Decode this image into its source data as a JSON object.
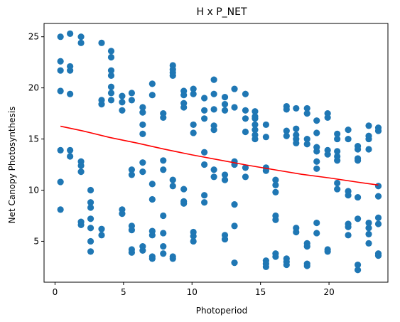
{
  "chart_data": {
    "type": "scatter",
    "title": "H x P_NET",
    "xlabel": "Photoperiod",
    "ylabel": "Net Canopy Photosynthesis",
    "xlim": [
      -0.8,
      24.3
    ],
    "ylim": [
      1.0,
      26.3
    ],
    "xticks": [
      0,
      5,
      10,
      15,
      20
    ],
    "yticks": [
      5,
      10,
      15,
      20,
      25
    ],
    "grid": false,
    "colors": {
      "points": "#1f77b4",
      "trend": "#ff0000"
    },
    "points": [
      [
        0.4,
        25.0
      ],
      [
        0.4,
        22.6
      ],
      [
        0.4,
        21.7
      ],
      [
        0.4,
        19.7
      ],
      [
        0.4,
        13.9
      ],
      [
        0.4,
        10.8
      ],
      [
        0.4,
        8.1
      ],
      [
        1.1,
        25.3
      ],
      [
        1.1,
        22.1
      ],
      [
        1.1,
        21.7
      ],
      [
        1.1,
        19.4
      ],
      [
        1.1,
        13.9
      ],
      [
        1.1,
        13.3
      ],
      [
        1.9,
        25.0
      ],
      [
        1.9,
        24.4
      ],
      [
        1.9,
        12.8
      ],
      [
        1.9,
        12.4
      ],
      [
        1.9,
        11.8
      ],
      [
        1.9,
        6.9
      ],
      [
        1.9,
        6.6
      ],
      [
        2.6,
        10.0
      ],
      [
        2.6,
        8.8
      ],
      [
        2.6,
        8.3
      ],
      [
        2.6,
        7.2
      ],
      [
        2.6,
        6.3
      ],
      [
        2.6,
        5.0
      ],
      [
        2.6,
        4.0
      ],
      [
        3.4,
        24.4
      ],
      [
        3.4,
        18.8
      ],
      [
        3.4,
        18.4
      ],
      [
        3.4,
        6.2
      ],
      [
        3.4,
        5.6
      ],
      [
        4.1,
        23.6
      ],
      [
        4.1,
        23.0
      ],
      [
        4.1,
        21.7
      ],
      [
        4.1,
        21.2
      ],
      [
        4.1,
        20.1
      ],
      [
        4.1,
        19.5
      ],
      [
        4.1,
        18.8
      ],
      [
        4.9,
        19.2
      ],
      [
        4.9,
        18.6
      ],
      [
        4.9,
        17.8
      ],
      [
        4.9,
        8.1
      ],
      [
        4.9,
        7.7
      ],
      [
        5.6,
        19.5
      ],
      [
        5.6,
        18.8
      ],
      [
        5.6,
        12.0
      ],
      [
        5.6,
        11.5
      ],
      [
        5.6,
        6.5
      ],
      [
        5.6,
        6.1
      ],
      [
        5.6,
        4.2
      ],
      [
        5.6,
        3.9
      ],
      [
        6.4,
        18.1
      ],
      [
        6.4,
        17.6
      ],
      [
        6.4,
        16.4
      ],
      [
        6.4,
        15.5
      ],
      [
        6.4,
        12.7
      ],
      [
        6.4,
        11.8
      ],
      [
        6.4,
        4.5
      ],
      [
        6.4,
        4.1
      ],
      [
        7.1,
        20.4
      ],
      [
        7.1,
        19.3
      ],
      [
        7.1,
        10.6
      ],
      [
        7.1,
        9.1
      ],
      [
        7.1,
        6.0
      ],
      [
        7.1,
        5.6
      ],
      [
        7.1,
        3.5
      ],
      [
        7.1,
        3.3
      ],
      [
        7.9,
        17.5
      ],
      [
        7.9,
        17.1
      ],
      [
        7.9,
        12.9
      ],
      [
        7.9,
        12.0
      ],
      [
        7.9,
        7.5
      ],
      [
        7.9,
        5.8
      ],
      [
        7.9,
        4.5
      ],
      [
        7.9,
        3.8
      ],
      [
        8.6,
        22.2
      ],
      [
        8.6,
        21.8
      ],
      [
        8.6,
        21.5
      ],
      [
        8.6,
        21.2
      ],
      [
        8.6,
        11.0
      ],
      [
        8.6,
        10.4
      ],
      [
        8.6,
        3.5
      ],
      [
        8.6,
        3.3
      ],
      [
        9.4,
        19.7
      ],
      [
        9.4,
        19.3
      ],
      [
        9.4,
        18.5
      ],
      [
        9.4,
        18.1
      ],
      [
        9.4,
        10.1
      ],
      [
        9.4,
        8.9
      ],
      [
        9.4,
        8.7
      ],
      [
        10.1,
        19.9
      ],
      [
        10.1,
        19.4
      ],
      [
        10.1,
        16.4
      ],
      [
        10.1,
        15.6
      ],
      [
        10.1,
        5.9
      ],
      [
        10.1,
        5.5
      ],
      [
        10.1,
        5.0
      ],
      [
        10.9,
        19.0
      ],
      [
        10.9,
        17.8
      ],
      [
        10.9,
        17.0
      ],
      [
        10.9,
        13.7
      ],
      [
        10.9,
        12.5
      ],
      [
        10.9,
        9.5
      ],
      [
        10.9,
        8.8
      ],
      [
        11.6,
        20.8
      ],
      [
        11.6,
        19.4
      ],
      [
        11.6,
        17.9
      ],
      [
        11.6,
        16.3
      ],
      [
        11.6,
        15.9
      ],
      [
        11.6,
        12.0
      ],
      [
        11.6,
        11.3
      ],
      [
        12.4,
        19.1
      ],
      [
        12.4,
        18.4
      ],
      [
        12.4,
        17.8
      ],
      [
        12.4,
        11.5
      ],
      [
        12.4,
        11.0
      ],
      [
        12.4,
        5.6
      ],
      [
        12.4,
        5.2
      ],
      [
        13.1,
        19.9
      ],
      [
        13.1,
        18.1
      ],
      [
        13.1,
        12.8
      ],
      [
        13.1,
        12.5
      ],
      [
        13.1,
        8.6
      ],
      [
        13.1,
        6.5
      ],
      [
        13.1,
        2.9
      ],
      [
        13.9,
        19.4
      ],
      [
        13.9,
        17.8
      ],
      [
        13.9,
        17.0
      ],
      [
        13.9,
        15.7
      ],
      [
        13.9,
        12.2
      ],
      [
        13.9,
        11.3
      ],
      [
        14.6,
        17.7
      ],
      [
        14.6,
        17.0
      ],
      [
        14.6,
        16.4
      ],
      [
        14.6,
        15.9
      ],
      [
        14.6,
        15.4
      ],
      [
        14.6,
        15.0
      ],
      [
        14.6,
        17.2
      ],
      [
        15.4,
        16.4
      ],
      [
        15.4,
        15.2
      ],
      [
        15.4,
        12.2
      ],
      [
        15.4,
        11.9
      ],
      [
        15.4,
        3.1
      ],
      [
        15.4,
        2.8
      ],
      [
        15.4,
        2.5
      ],
      [
        16.1,
        11.0
      ],
      [
        16.1,
        10.5
      ],
      [
        16.1,
        9.8
      ],
      [
        16.1,
        7.5
      ],
      [
        16.1,
        7.1
      ],
      [
        16.1,
        3.8
      ],
      [
        16.1,
        3.5
      ],
      [
        16.9,
        18.2
      ],
      [
        16.9,
        17.9
      ],
      [
        16.9,
        15.8
      ],
      [
        16.9,
        15.3
      ],
      [
        16.9,
        3.3
      ],
      [
        16.9,
        3.0
      ],
      [
        16.9,
        2.7
      ],
      [
        17.6,
        18.0
      ],
      [
        17.6,
        16.0
      ],
      [
        17.6,
        15.4
      ],
      [
        17.6,
        15.0
      ],
      [
        17.6,
        14.6
      ],
      [
        17.6,
        6.3
      ],
      [
        17.6,
        5.9
      ],
      [
        18.4,
        18.0
      ],
      [
        18.4,
        17.5
      ],
      [
        18.4,
        15.0
      ],
      [
        18.4,
        14.5
      ],
      [
        18.4,
        4.8
      ],
      [
        18.4,
        4.5
      ],
      [
        18.4,
        2.8
      ],
      [
        18.4,
        2.6
      ],
      [
        19.1,
        16.8
      ],
      [
        19.1,
        15.6
      ],
      [
        19.1,
        14.2
      ],
      [
        19.1,
        13.8
      ],
      [
        19.1,
        12.8
      ],
      [
        19.1,
        12.1
      ],
      [
        19.1,
        6.8
      ],
      [
        19.1,
        5.8
      ],
      [
        19.9,
        17.5
      ],
      [
        19.9,
        17.1
      ],
      [
        19.9,
        13.9
      ],
      [
        19.9,
        13.5
      ],
      [
        19.9,
        4.2
      ],
      [
        19.9,
        4.0
      ],
      [
        20.6,
        15.5
      ],
      [
        20.6,
        15.0
      ],
      [
        20.6,
        13.8
      ],
      [
        20.6,
        13.3
      ],
      [
        20.6,
        12.9
      ],
      [
        20.6,
        10.7
      ],
      [
        20.6,
        10.1
      ],
      [
        21.4,
        15.9
      ],
      [
        21.4,
        15.0
      ],
      [
        21.4,
        9.9
      ],
      [
        21.4,
        9.5
      ],
      [
        21.4,
        6.7
      ],
      [
        21.4,
        6.4
      ],
      [
        21.4,
        5.6
      ],
      [
        22.1,
        14.3
      ],
      [
        22.1,
        14.0
      ],
      [
        22.1,
        13.1
      ],
      [
        22.1,
        12.9
      ],
      [
        22.1,
        9.3
      ],
      [
        22.1,
        7.2
      ],
      [
        22.1,
        2.7
      ],
      [
        22.1,
        2.2
      ],
      [
        22.9,
        16.3
      ],
      [
        22.9,
        15.3
      ],
      [
        22.9,
        15.0
      ],
      [
        22.9,
        14.0
      ],
      [
        22.9,
        6.8
      ],
      [
        22.9,
        6.3
      ],
      [
        22.9,
        5.7
      ],
      [
        22.9,
        4.8
      ],
      [
        23.6,
        16.1
      ],
      [
        23.6,
        15.8
      ],
      [
        23.6,
        10.4
      ],
      [
        23.6,
        9.4
      ],
      [
        23.6,
        7.3
      ],
      [
        23.6,
        6.7
      ],
      [
        23.6,
        3.8
      ],
      [
        23.6,
        3.6
      ]
    ],
    "trend_line": {
      "x": [
        0.4,
        2,
        4,
        6,
        8,
        10,
        12,
        14,
        16,
        18,
        20,
        22,
        23.6
      ],
      "y": [
        16.25,
        15.8,
        15.15,
        14.6,
        14.0,
        13.45,
        12.95,
        12.45,
        12.0,
        11.55,
        11.2,
        10.8,
        10.5
      ]
    }
  }
}
